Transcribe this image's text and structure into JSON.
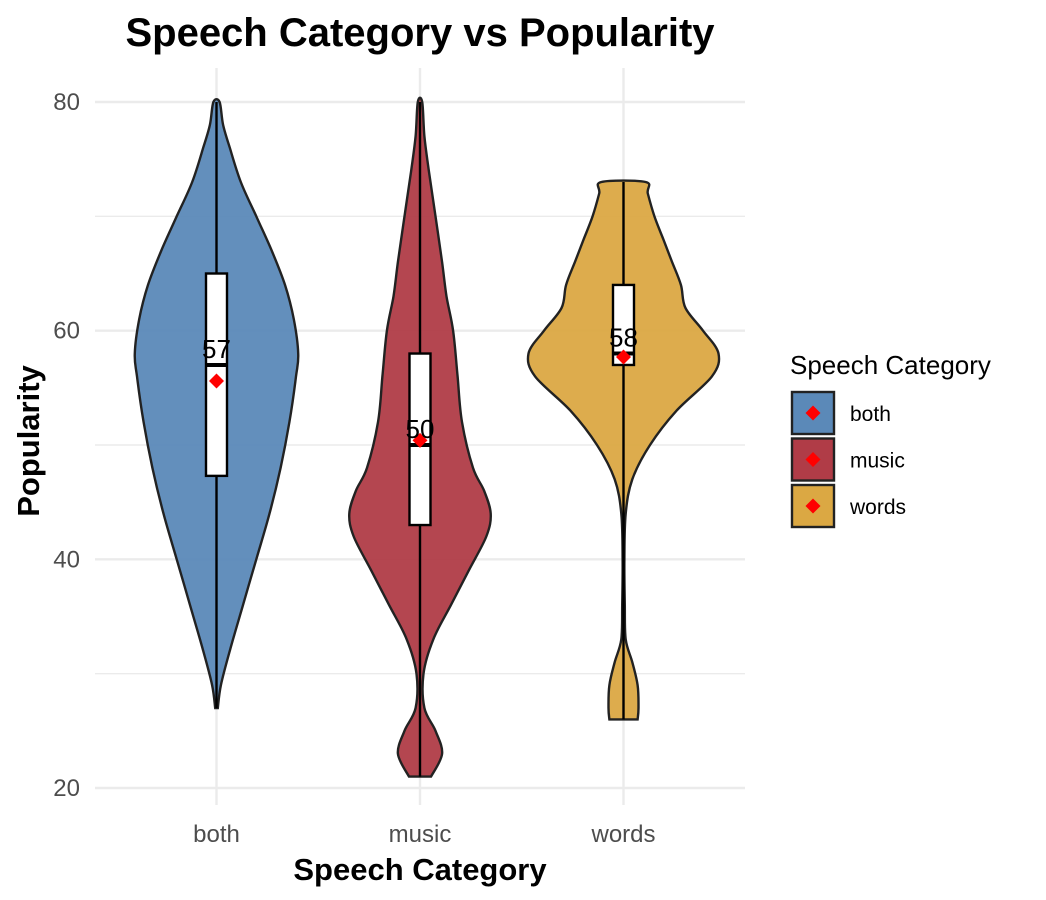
{
  "chart_data": {
    "type": "violin",
    "title": "Speech Category vs Popularity",
    "xlabel": "Speech Category",
    "ylabel": "Popularity",
    "ylim": [
      20,
      80
    ],
    "yticks": [
      20,
      40,
      60,
      80
    ],
    "grid": true,
    "categories": [
      "both",
      "music",
      "words"
    ],
    "legend": {
      "title": "Speech Category",
      "position": "right",
      "items": [
        "both",
        "music",
        "words"
      ]
    },
    "colors": {
      "both": "#5b89b8",
      "music": "#b03c47",
      "words": "#dba843",
      "mean_marker": "#ff0000"
    },
    "series": [
      {
        "name": "both",
        "min": 27,
        "q1": 47.3,
        "median": 57,
        "q3": 65,
        "max": 80,
        "mean": 55.6,
        "median_label": "57",
        "density": [
          [
            27,
            0.3
          ],
          [
            29,
            1
          ],
          [
            32,
            3
          ],
          [
            36,
            6
          ],
          [
            40,
            9
          ],
          [
            44,
            12
          ],
          [
            48,
            14.5
          ],
          [
            52,
            16.5
          ],
          [
            56,
            18
          ],
          [
            58,
            18.5
          ],
          [
            61,
            17.5
          ],
          [
            64,
            15.5
          ],
          [
            67,
            12.5
          ],
          [
            70,
            9
          ],
          [
            73,
            5.5
          ],
          [
            76,
            3
          ],
          [
            78,
            1.5
          ],
          [
            80,
            0.7
          ]
        ]
      },
      {
        "name": "music",
        "min": 21,
        "q1": 43,
        "median": 50,
        "q3": 58,
        "max": 80,
        "mean": 50.4,
        "median_label": "50",
        "density": [
          [
            21,
            2.5
          ],
          [
            23,
            5
          ],
          [
            25,
            3.5
          ],
          [
            27,
            1
          ],
          [
            30,
            0.8
          ],
          [
            33,
            3
          ],
          [
            36,
            7
          ],
          [
            39,
            11
          ],
          [
            42,
            15
          ],
          [
            44,
            16
          ],
          [
            46,
            14.5
          ],
          [
            48,
            12
          ],
          [
            52,
            9.5
          ],
          [
            56,
            8.5
          ],
          [
            60,
            7.5
          ],
          [
            63,
            6
          ],
          [
            66,
            5
          ],
          [
            70,
            3.5
          ],
          [
            74,
            2
          ],
          [
            77,
            1
          ],
          [
            80,
            0.5
          ]
        ]
      },
      {
        "name": "words",
        "min": 26,
        "q1": 57,
        "median": 58,
        "q3": 64,
        "max": 73,
        "mean": 57.7,
        "median_label": "58",
        "density": [
          [
            26,
            3.2
          ],
          [
            27,
            3.4
          ],
          [
            29,
            3.2
          ],
          [
            31,
            2
          ],
          [
            33,
            0.5
          ],
          [
            36,
            0.3
          ],
          [
            40,
            0.2
          ],
          [
            44,
            0.5
          ],
          [
            47,
            2
          ],
          [
            50,
            6
          ],
          [
            53,
            12
          ],
          [
            56,
            20
          ],
          [
            58,
            21.5
          ],
          [
            60,
            18
          ],
          [
            62,
            14
          ],
          [
            64,
            13
          ],
          [
            66,
            11
          ],
          [
            68,
            9
          ],
          [
            70,
            7
          ],
          [
            72,
            5.5
          ],
          [
            73,
            5
          ]
        ]
      }
    ]
  }
}
